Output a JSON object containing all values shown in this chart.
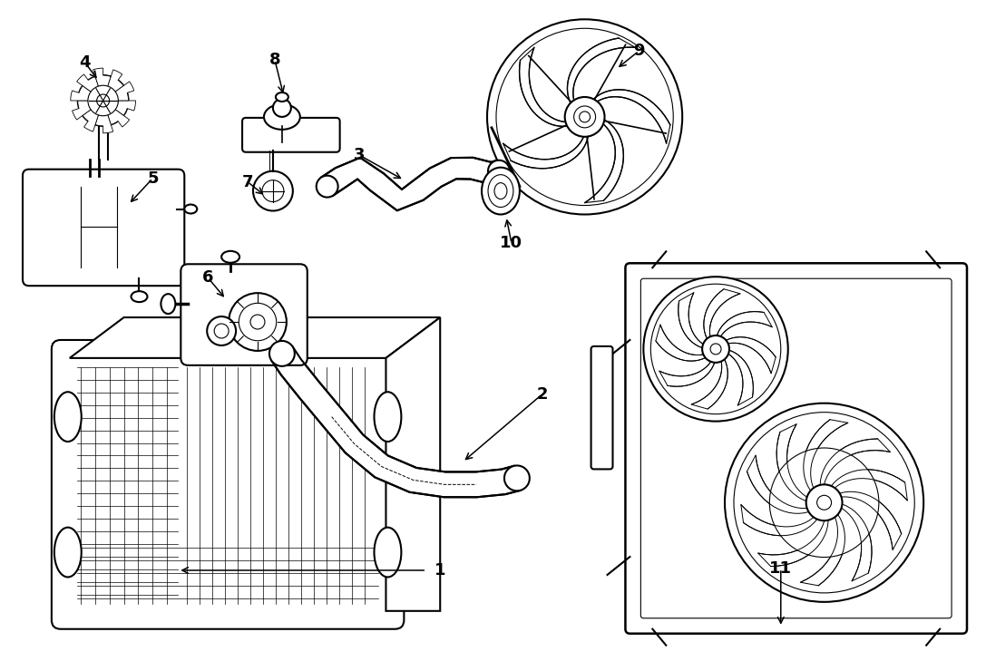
{
  "bg_color": "#ffffff",
  "line_color": "#000000",
  "figsize": [
    10.87,
    7.29
  ],
  "dpi": 100,
  "lw_main": 1.5,
  "lw_thin": 0.8,
  "font_size": 13
}
